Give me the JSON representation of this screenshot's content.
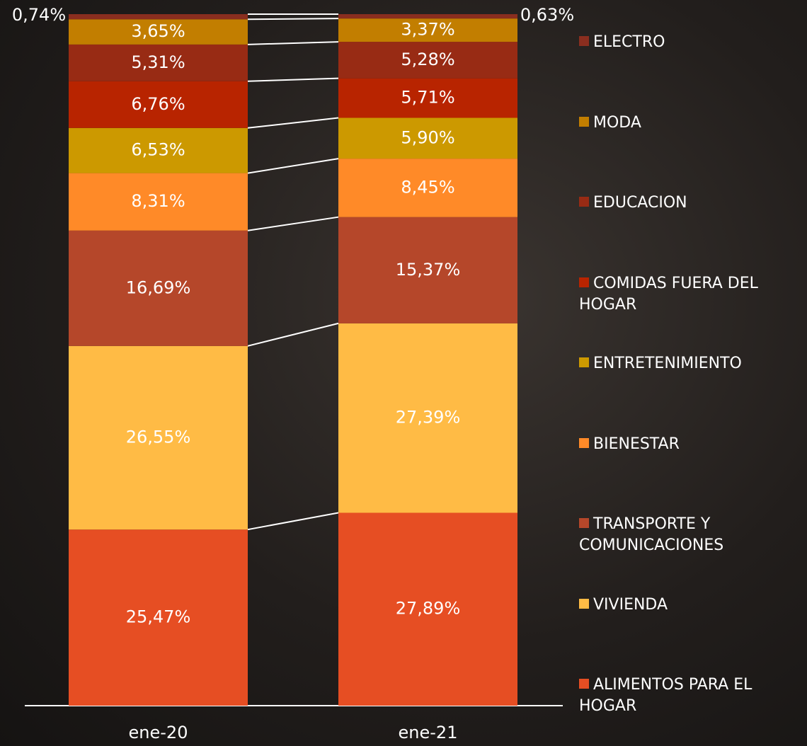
{
  "chart_data": {
    "type": "stacked_bar",
    "categories": [
      "ene-20",
      "ene-21"
    ],
    "series": [
      {
        "name": "ALIMENTOS PARA EL HOGAR",
        "color": "#e64e23",
        "values": [
          25.47,
          27.89
        ],
        "value_labels": [
          "25,47%",
          "27,89%"
        ]
      },
      {
        "name": "VIVIENDA",
        "color": "#ffbb45",
        "values": [
          26.55,
          27.39
        ],
        "value_labels": [
          "26,55%",
          "27,39%"
        ]
      },
      {
        "name": "TRANSPORTE Y COMUNICACIONES",
        "color": "#b5472a",
        "values": [
          16.69,
          15.37
        ],
        "value_labels": [
          "16,69%",
          "15,37%"
        ]
      },
      {
        "name": "BIENESTAR",
        "color": "#ff8a28",
        "values": [
          8.31,
          8.45
        ],
        "value_labels": [
          "8,31%",
          "8,45%"
        ]
      },
      {
        "name": "ENTRETENIMIENTO",
        "color": "#cc9900",
        "values": [
          6.53,
          5.9
        ],
        "value_labels": [
          "6,53%",
          "5,90%"
        ]
      },
      {
        "name": "COMIDAS FUERA DEL HOGAR",
        "color": "#b82400",
        "values": [
          6.76,
          5.71
        ],
        "value_labels": [
          "6,76%",
          "5,71%"
        ]
      },
      {
        "name": "EDUCACION",
        "color": "#982b14",
        "values": [
          5.31,
          5.28
        ],
        "value_labels": [
          "5,31%",
          "5,28%"
        ]
      },
      {
        "name": "MODA",
        "color": "#c27e00",
        "values": [
          3.65,
          3.37
        ],
        "value_labels": [
          "3,65%",
          "3,37%"
        ]
      },
      {
        "name": "ELECTRO",
        "color": "#8a2e1f",
        "values": [
          0.74,
          0.63
        ],
        "value_labels": [
          "0,74%",
          "0,63%"
        ]
      }
    ]
  }
}
